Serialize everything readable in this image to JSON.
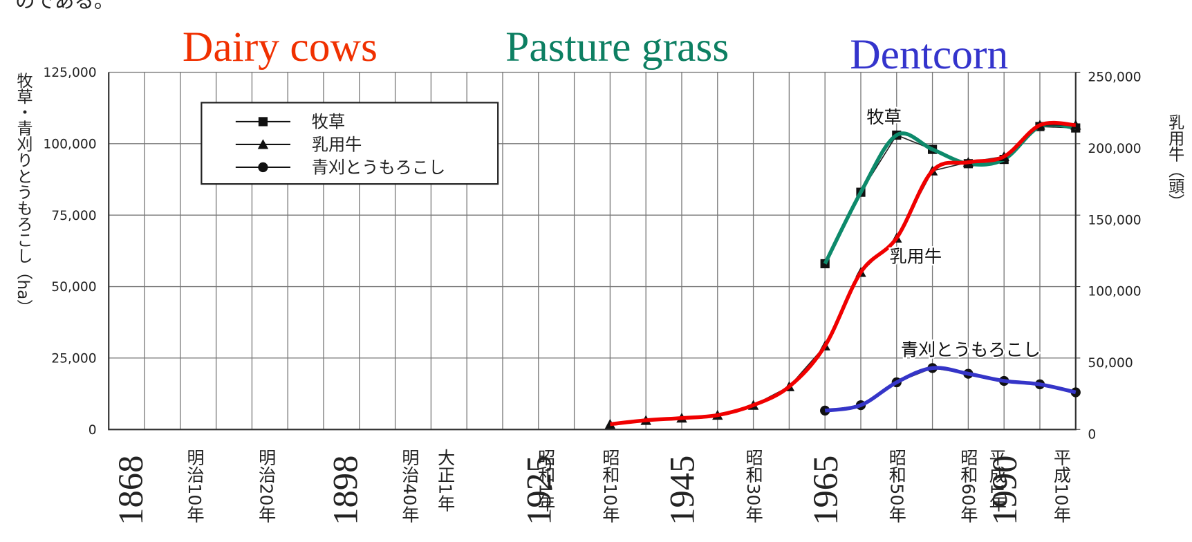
{
  "chart_data": {
    "type": "line",
    "top_text": "のである。",
    "annotations": [
      {
        "text": "Dairy cows",
        "color": "#f03000"
      },
      {
        "text": "Pasture grass",
        "color": "#0d7f62"
      },
      {
        "text": "Dentcorn",
        "color": "#3434cc"
      }
    ],
    "ylabel": "牧草・青刈りとうもろこし（ha）",
    "y2label": "乳用牛（頭）",
    "xlim": [
      1865,
      2000
    ],
    "xticks": [
      1865,
      1870,
      1875,
      1880,
      1885,
      1890,
      1895,
      1900,
      1905,
      1910,
      1915,
      1920,
      1925,
      1930,
      1935,
      1940,
      1945,
      1950,
      1955,
      1960,
      1965,
      1970,
      1975,
      1980,
      1985,
      1990,
      1995,
      2000
    ],
    "x_labels": [
      {
        "value": 1877,
        "label": "明治10年"
      },
      {
        "value": 1887,
        "label": "明治20年"
      },
      {
        "value": 1907,
        "label": "明治40年"
      },
      {
        "value": 1912,
        "label": "大正1年"
      },
      {
        "value": 1926,
        "label": "昭和1年"
      },
      {
        "value": 1935,
        "label": "昭和10年"
      },
      {
        "value": 1955,
        "label": "昭和30年"
      },
      {
        "value": 1975,
        "label": "昭和50年"
      },
      {
        "value": 1985,
        "label": "昭和60年"
      },
      {
        "value": 1989,
        "label": "平成1年"
      },
      {
        "value": 1998,
        "label": "平成10年"
      }
    ],
    "year_labels": [
      1868,
      1898,
      1925,
      1945,
      1965,
      1990
    ],
    "ylim": [
      0,
      125000
    ],
    "yticks": [
      0,
      {
        "value": 25000,
        "label": "25,000"
      },
      {
        "value": 50000,
        "label": "50,000"
      },
      {
        "value": 75000,
        "label": "75,000"
      },
      {
        "value": 100000,
        "label": "100,000"
      },
      {
        "value": 125000,
        "label": "125,000"
      }
    ],
    "y2lim": [
      0,
      250000
    ],
    "y2ticks": [
      0,
      {
        "value": 50000,
        "label": "50,000"
      },
      {
        "value": 100000,
        "label": "100,000"
      },
      {
        "value": 150000,
        "label": "150,000"
      },
      {
        "value": 200000,
        "label": "200,000"
      },
      {
        "value": 250000,
        "label": "250,000"
      }
    ],
    "grid": true,
    "legend": "upper left",
    "series": [
      {
        "name": "牧草",
        "color": "#0d8a6b",
        "marker": "square",
        "x": [
          1965,
          1970,
          1975,
          1980,
          1985,
          1990,
          1995,
          2000
        ],
        "values": [
          58000,
          83000,
          103000,
          98000,
          93000,
          94500,
          106000,
          105500
        ]
      },
      {
        "name": "乳用牛",
        "color": "#f00000",
        "marker": "triangle",
        "axis": "y2",
        "x": [
          1935,
          1940,
          1945,
          1950,
          1955,
          1960,
          1965,
          1970,
          1975,
          1980,
          1985,
          1990,
          1995,
          2000
        ],
        "values": [
          3700,
          6400,
          8000,
          10000,
          17000,
          30000,
          58500,
          110000,
          134000,
          181000,
          187000,
          191000,
          213000,
          213000
        ]
      },
      {
        "name": "青刈とうもろこし",
        "color": "#3535c8",
        "marker": "circle",
        "x": [
          1965,
          1970,
          1975,
          1980,
          1985,
          1990,
          1995,
          2000
        ],
        "values": [
          6600,
          8500,
          16500,
          21500,
          19500,
          17000,
          15800,
          13000
        ]
      }
    ]
  }
}
